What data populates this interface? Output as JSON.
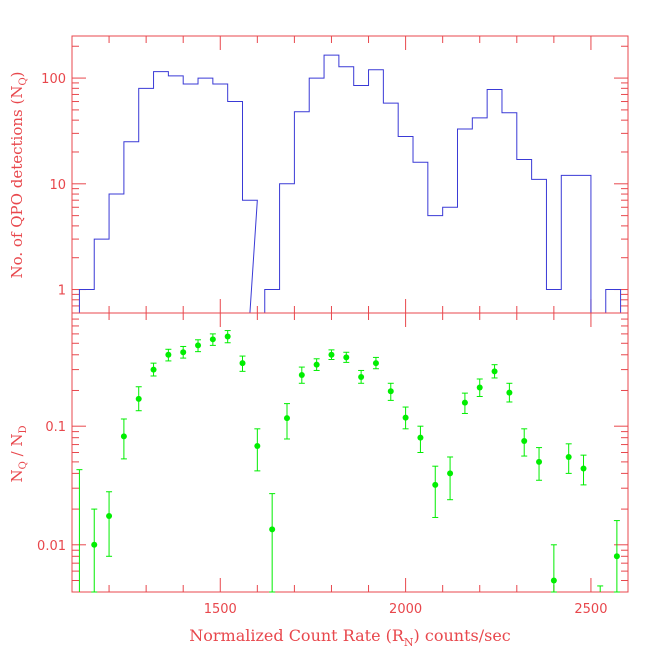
{
  "colors": {
    "axes": "#e8474c",
    "histogram": "#3a3ad6",
    "points": "#00ee00",
    "text": "#e8474c",
    "background": "#ffffff"
  },
  "labels": {
    "top_ylabel": "No. of QPO detections (N",
    "top_ylabel_sub": "Q",
    "top_ylabel_end": ")",
    "bottom_ylabel_a": "N",
    "bottom_ylabel_a_sub": "Q",
    "bottom_ylabel_mid": " / N",
    "bottom_ylabel_b_sub": "D",
    "xlabel": "Normalized Count Rate (R",
    "xlabel_sub": "N",
    "xlabel_end": ") counts/sec"
  },
  "chart_data": [
    {
      "type": "histogram",
      "panel": "top",
      "x_scale": "linear",
      "y_scale": "log",
      "xlim": [
        1100,
        2600
      ],
      "ylim": [
        0.6,
        250
      ],
      "xticks": [
        1500,
        2000,
        2500
      ],
      "yticks": [
        1,
        10,
        100
      ],
      "ytick_labels": [
        "1",
        "10",
        "100"
      ],
      "bin_width": 40,
      "bins": [
        {
          "x": 1140,
          "y": 1
        },
        {
          "x": 1180,
          "y": 3
        },
        {
          "x": 1220,
          "y": 8
        },
        {
          "x": 1260,
          "y": 25
        },
        {
          "x": 1300,
          "y": 80
        },
        {
          "x": 1340,
          "y": 115
        },
        {
          "x": 1380,
          "y": 105
        },
        {
          "x": 1420,
          "y": 88
        },
        {
          "x": 1460,
          "y": 100
        },
        {
          "x": 1500,
          "y": 88
        },
        {
          "x": 1540,
          "y": 60
        },
        {
          "x": 1580,
          "y": 7
        },
        {
          "x": 1600,
          "y": 0.6
        },
        {
          "x": 1640,
          "y": 1
        },
        {
          "x": 1680,
          "y": 10
        },
        {
          "x": 1720,
          "y": 48
        },
        {
          "x": 1760,
          "y": 100
        },
        {
          "x": 1800,
          "y": 165
        },
        {
          "x": 1840,
          "y": 128
        },
        {
          "x": 1880,
          "y": 85
        },
        {
          "x": 1920,
          "y": 120
        },
        {
          "x": 1960,
          "y": 58
        },
        {
          "x": 2000,
          "y": 28
        },
        {
          "x": 2040,
          "y": 16
        },
        {
          "x": 2080,
          "y": 5
        },
        {
          "x": 2120,
          "y": 6
        },
        {
          "x": 2160,
          "y": 33
        },
        {
          "x": 2200,
          "y": 42
        },
        {
          "x": 2240,
          "y": 78
        },
        {
          "x": 2280,
          "y": 47
        },
        {
          "x": 2320,
          "y": 17
        },
        {
          "x": 2360,
          "y": 11
        },
        {
          "x": 2400,
          "y": 1
        },
        {
          "x": 2440,
          "y": 12
        },
        {
          "x": 2480,
          "y": 12
        },
        {
          "x": 2520,
          "y": 0.6
        },
        {
          "x": 2560,
          "y": 1
        }
      ]
    },
    {
      "type": "scatter",
      "panel": "bottom",
      "x_scale": "linear",
      "y_scale": "log",
      "xlim": [
        1100,
        2600
      ],
      "ylim": [
        0.004,
        0.9
      ],
      "xticks": [
        1500,
        2000,
        2500
      ],
      "xtick_labels": [
        "1500",
        "2000",
        "2500"
      ],
      "yticks": [
        0.01,
        0.1
      ],
      "ytick_labels": [
        "0.01",
        "0.1"
      ],
      "points": [
        {
          "x": 1160,
          "y": 0.01,
          "lo": 0.004,
          "hi": 0.02
        },
        {
          "x": 1200,
          "y": 0.0175,
          "lo": 0.008,
          "hi": 0.028
        },
        {
          "x": 1240,
          "y": 0.082,
          "lo": 0.053,
          "hi": 0.115
        },
        {
          "x": 1280,
          "y": 0.17,
          "lo": 0.135,
          "hi": 0.215
        },
        {
          "x": 1320,
          "y": 0.3,
          "lo": 0.265,
          "hi": 0.34
        },
        {
          "x": 1360,
          "y": 0.4,
          "lo": 0.355,
          "hi": 0.445
        },
        {
          "x": 1400,
          "y": 0.42,
          "lo": 0.375,
          "hi": 0.47
        },
        {
          "x": 1440,
          "y": 0.48,
          "lo": 0.425,
          "hi": 0.535
        },
        {
          "x": 1480,
          "y": 0.54,
          "lo": 0.48,
          "hi": 0.6
        },
        {
          "x": 1520,
          "y": 0.57,
          "lo": 0.505,
          "hi": 0.64
        },
        {
          "x": 1560,
          "y": 0.34,
          "lo": 0.29,
          "hi": 0.39
        },
        {
          "x": 1600,
          "y": 0.068,
          "lo": 0.042,
          "hi": 0.095
        },
        {
          "x": 1640,
          "y": 0.0135,
          "lo": 0.004,
          "hi": 0.027
        },
        {
          "x": 1680,
          "y": 0.117,
          "lo": 0.078,
          "hi": 0.155
        },
        {
          "x": 1720,
          "y": 0.27,
          "lo": 0.23,
          "hi": 0.315
        },
        {
          "x": 1760,
          "y": 0.33,
          "lo": 0.295,
          "hi": 0.37
        },
        {
          "x": 1800,
          "y": 0.4,
          "lo": 0.365,
          "hi": 0.44
        },
        {
          "x": 1840,
          "y": 0.38,
          "lo": 0.345,
          "hi": 0.42
        },
        {
          "x": 1880,
          "y": 0.26,
          "lo": 0.23,
          "hi": 0.295
        },
        {
          "x": 1920,
          "y": 0.34,
          "lo": 0.305,
          "hi": 0.38
        },
        {
          "x": 1960,
          "y": 0.197,
          "lo": 0.165,
          "hi": 0.23
        },
        {
          "x": 2000,
          "y": 0.118,
          "lo": 0.095,
          "hi": 0.145
        },
        {
          "x": 2040,
          "y": 0.08,
          "lo": 0.06,
          "hi": 0.1
        },
        {
          "x": 2080,
          "y": 0.032,
          "lo": 0.017,
          "hi": 0.046
        },
        {
          "x": 2120,
          "y": 0.04,
          "lo": 0.024,
          "hi": 0.055
        },
        {
          "x": 2160,
          "y": 0.158,
          "lo": 0.128,
          "hi": 0.19
        },
        {
          "x": 2200,
          "y": 0.212,
          "lo": 0.178,
          "hi": 0.25
        },
        {
          "x": 2240,
          "y": 0.29,
          "lo": 0.255,
          "hi": 0.33
        },
        {
          "x": 2280,
          "y": 0.192,
          "lo": 0.16,
          "hi": 0.23
        },
        {
          "x": 2320,
          "y": 0.075,
          "lo": 0.056,
          "hi": 0.095
        },
        {
          "x": 2360,
          "y": 0.05,
          "lo": 0.035,
          "hi": 0.066
        },
        {
          "x": 2400,
          "y": 0.005,
          "lo": 0.004,
          "hi": 0.01
        },
        {
          "x": 2440,
          "y": 0.055,
          "lo": 0.04,
          "hi": 0.071
        },
        {
          "x": 2480,
          "y": 0.044,
          "lo": 0.032,
          "hi": 0.057
        },
        {
          "x": 2570,
          "y": 0.008,
          "lo": 0.004,
          "hi": 0.016
        }
      ],
      "extra_bars": [
        {
          "x": 1120,
          "lo": 0.004,
          "hi": 0.043
        },
        {
          "x": 2525,
          "lo": 0.004,
          "hi": 0.0045
        }
      ]
    }
  ]
}
